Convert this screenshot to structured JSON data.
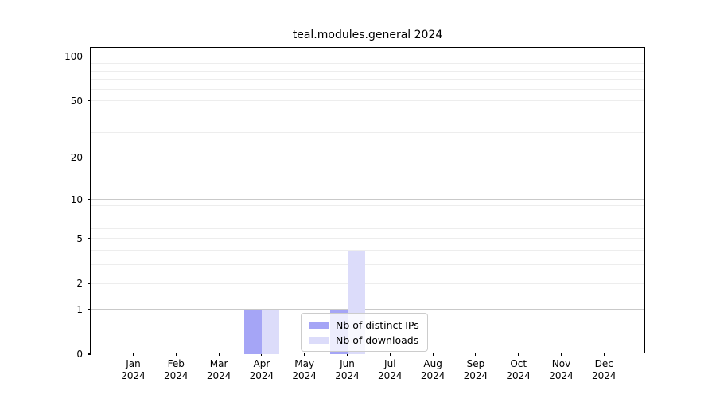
{
  "title": "teal.modules.general 2024",
  "legend": {
    "items": [
      {
        "label": "Nb of distinct IPs",
        "color": "#a5a5f6"
      },
      {
        "label": "Nb of downloads",
        "color": "#dcdcfa"
      }
    ]
  },
  "chart_data": {
    "type": "bar",
    "title": "teal.modules.general 2024",
    "categories": [
      "Jan",
      "Feb",
      "Mar",
      "Apr",
      "May",
      "Jun",
      "Jul",
      "Aug",
      "Sep",
      "Oct",
      "Nov",
      "Dec"
    ],
    "year": "2024",
    "series": [
      {
        "name": "Nb of distinct IPs",
        "color": "#a5a5f6",
        "values": [
          0,
          0,
          0,
          1,
          0,
          1,
          0,
          0,
          0,
          0,
          0,
          0
        ]
      },
      {
        "name": "Nb of downloads",
        "color": "#dcdcfa",
        "values": [
          0,
          0,
          0,
          1,
          0,
          4,
          0,
          0,
          0,
          0,
          0,
          0
        ]
      }
    ],
    "xlabel": "",
    "ylabel": "",
    "yscale": "log1p",
    "ylim": [
      0,
      115
    ],
    "yticks": [
      0,
      1,
      2,
      5,
      10,
      20,
      50,
      100
    ],
    "grid_major_at": [
      1,
      10,
      100
    ],
    "grid_minor_at": [
      2,
      3,
      4,
      5,
      6,
      7,
      8,
      9,
      20,
      30,
      40,
      50,
      60,
      70,
      80,
      90
    ],
    "grid_major_color": "#c9c9c9",
    "grid_minor_color": "#ededed",
    "legend_position": "lower center"
  }
}
